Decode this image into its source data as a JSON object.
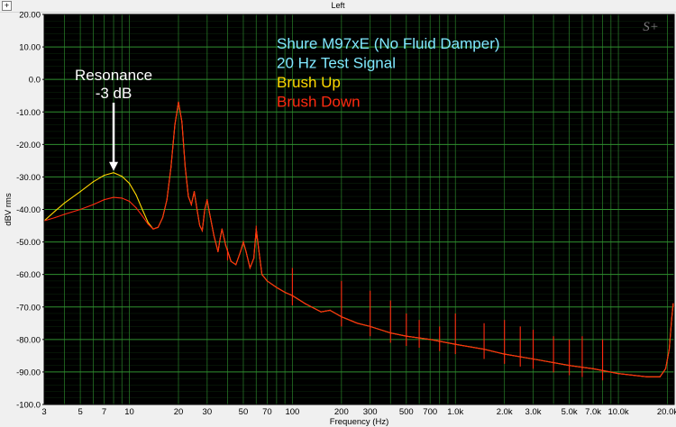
{
  "window": {
    "title": "Left",
    "expand_glyph": "+"
  },
  "chart_data": {
    "type": "line",
    "title": "",
    "xlabel": "Frequency (Hz)",
    "ylabel": "dBV rms",
    "x_scale": "log",
    "xlim": [
      3,
      22000
    ],
    "ylim": [
      -100,
      20
    ],
    "x_ticks": [
      3,
      5,
      7,
      10,
      20,
      30,
      50,
      70,
      100,
      200,
      300,
      500,
      700,
      1000,
      2000,
      3000,
      5000,
      7000,
      10000,
      20000
    ],
    "x_tick_labels": [
      "3",
      "5",
      "7",
      "10",
      "20",
      "30",
      "50",
      "70",
      "100",
      "200",
      "300",
      "500",
      "700",
      "1.0k",
      "2.0k",
      "3.0k",
      "5.0k",
      "7.0k",
      "10.0k",
      "20.0k"
    ],
    "y_ticks": [
      20,
      10,
      0,
      -10,
      -20,
      -30,
      -40,
      -50,
      -60,
      -70,
      -80,
      -90,
      -100
    ],
    "y_tick_labels": [
      "20.00",
      "10.00",
      "0.0",
      "-10.00",
      "-20.00",
      "-30.00",
      "-40.00",
      "-50.00",
      "-60.00",
      "-70.00",
      "-80.00",
      "-90.00",
      "-100.0"
    ],
    "grid": true,
    "background": "#000000",
    "grid_color": "#2f8f2f",
    "legend_text": [
      {
        "text": "Shure M97xE (No Fluid Damper)",
        "color": "#80e8ff"
      },
      {
        "text": "20 Hz Test Signal",
        "color": "#80e8ff"
      },
      {
        "text": "Brush Up",
        "color": "#ffd700"
      },
      {
        "text": "Brush Down",
        "color": "#ff2a10"
      }
    ],
    "legend_placement": "top-center",
    "annotation": {
      "lines": [
        "Resonance",
        "-3 dB"
      ],
      "x": 8,
      "y": -28.7,
      "color": "#ffffff"
    },
    "watermark": "S+",
    "series": [
      {
        "name": "Brush Up",
        "color": "#ffd700",
        "points": [
          [
            3,
            -43.5
          ],
          [
            3.5,
            -40.5
          ],
          [
            4,
            -38
          ],
          [
            5,
            -34.5
          ],
          [
            6,
            -31.5
          ],
          [
            7,
            -29.5
          ],
          [
            8,
            -28.7
          ],
          [
            9,
            -29.8
          ],
          [
            10,
            -32
          ],
          [
            11,
            -35.5
          ],
          [
            12,
            -40
          ],
          [
            13,
            -44
          ],
          [
            14,
            -46
          ],
          [
            15,
            -45.5
          ],
          [
            16,
            -42.5
          ],
          [
            17,
            -37
          ],
          [
            18,
            -27
          ],
          [
            19,
            -14
          ],
          [
            20,
            -7
          ],
          [
            21,
            -13
          ],
          [
            22,
            -27
          ],
          [
            23,
            -36
          ],
          [
            24,
            -38.5
          ],
          [
            25,
            -34.5
          ],
          [
            26,
            -40
          ],
          [
            27,
            -45
          ],
          [
            28,
            -46.5
          ],
          [
            29,
            -40
          ],
          [
            30,
            -37
          ],
          [
            31,
            -41
          ],
          [
            33,
            -48
          ],
          [
            35,
            -53
          ],
          [
            36,
            -49
          ],
          [
            37,
            -46
          ],
          [
            39,
            -51
          ],
          [
            42,
            -56
          ],
          [
            45,
            -57
          ],
          [
            48,
            -53
          ],
          [
            50,
            -50
          ],
          [
            52,
            -53
          ],
          [
            55,
            -58
          ],
          [
            58,
            -55
          ],
          [
            60,
            -46
          ],
          [
            62,
            -52
          ],
          [
            65,
            -60
          ],
          [
            70,
            -62
          ],
          [
            80,
            -64
          ],
          [
            90,
            -65.5
          ],
          [
            100,
            -66.5
          ],
          [
            120,
            -69
          ],
          [
            150,
            -71.5
          ],
          [
            170,
            -71
          ],
          [
            200,
            -73
          ],
          [
            250,
            -75
          ],
          [
            300,
            -76
          ],
          [
            400,
            -78
          ],
          [
            500,
            -79
          ],
          [
            700,
            -80
          ],
          [
            1000,
            -81.5
          ],
          [
            1500,
            -83
          ],
          [
            2000,
            -84.5
          ],
          [
            3000,
            -86
          ],
          [
            5000,
            -88
          ],
          [
            7000,
            -89
          ],
          [
            10000,
            -90.5
          ],
          [
            15000,
            -91.5
          ],
          [
            18000,
            -91.5
          ],
          [
            19500,
            -89
          ],
          [
            20500,
            -83
          ],
          [
            21200,
            -74
          ],
          [
            21700,
            -69
          ],
          [
            22000,
            -70
          ]
        ]
      },
      {
        "name": "Brush Down",
        "color": "#ff2a10",
        "points": [
          [
            3,
            -43.5
          ],
          [
            3.5,
            -42.5
          ],
          [
            4,
            -41.5
          ],
          [
            5,
            -40
          ],
          [
            6,
            -38.5
          ],
          [
            7,
            -37
          ],
          [
            8,
            -36.3
          ],
          [
            9,
            -36.5
          ],
          [
            10,
            -37.5
          ],
          [
            11,
            -39.5
          ],
          [
            12,
            -42
          ],
          [
            13,
            -44.5
          ],
          [
            14,
            -46
          ],
          [
            15,
            -45.5
          ],
          [
            16,
            -42.5
          ],
          [
            17,
            -37
          ],
          [
            18,
            -27
          ],
          [
            19,
            -14
          ],
          [
            20,
            -7
          ],
          [
            21,
            -13
          ],
          [
            22,
            -27
          ],
          [
            23,
            -36
          ],
          [
            24,
            -38.5
          ],
          [
            25,
            -34.5
          ],
          [
            26,
            -40
          ],
          [
            27,
            -45
          ],
          [
            28,
            -46.5
          ],
          [
            29,
            -40
          ],
          [
            30,
            -37
          ],
          [
            31,
            -41
          ],
          [
            33,
            -48
          ],
          [
            35,
            -53
          ],
          [
            36,
            -49
          ],
          [
            37,
            -46
          ],
          [
            39,
            -51
          ],
          [
            42,
            -56
          ],
          [
            45,
            -57
          ],
          [
            48,
            -53
          ],
          [
            50,
            -50
          ],
          [
            52,
            -53
          ],
          [
            55,
            -58
          ],
          [
            58,
            -55
          ],
          [
            60,
            -46
          ],
          [
            62,
            -52
          ],
          [
            65,
            -60
          ],
          [
            70,
            -62
          ],
          [
            80,
            -64
          ],
          [
            90,
            -65.5
          ],
          [
            100,
            -66.5
          ],
          [
            120,
            -69
          ],
          [
            150,
            -71.5
          ],
          [
            170,
            -71
          ],
          [
            200,
            -73
          ],
          [
            250,
            -75
          ],
          [
            300,
            -76
          ],
          [
            400,
            -78
          ],
          [
            500,
            -79
          ],
          [
            700,
            -80
          ],
          [
            1000,
            -81.5
          ],
          [
            1500,
            -83
          ],
          [
            2000,
            -84.5
          ],
          [
            3000,
            -86
          ],
          [
            5000,
            -88
          ],
          [
            7000,
            -89
          ],
          [
            10000,
            -90.5
          ],
          [
            15000,
            -91.5
          ],
          [
            18000,
            -91.5
          ],
          [
            19500,
            -89
          ],
          [
            20500,
            -83
          ],
          [
            21200,
            -74
          ],
          [
            21700,
            -69
          ],
          [
            22000,
            -70
          ]
        ]
      }
    ],
    "spikes": [
      {
        "x": 40,
        "y": -52
      },
      {
        "x": 60,
        "y": -45
      },
      {
        "x": 100,
        "y": -58
      },
      {
        "x": 200,
        "y": -62
      },
      {
        "x": 300,
        "y": -65
      },
      {
        "x": 400,
        "y": -68
      },
      {
        "x": 500,
        "y": -72
      },
      {
        "x": 600,
        "y": -74
      },
      {
        "x": 800,
        "y": -76
      },
      {
        "x": 1000,
        "y": -72
      },
      {
        "x": 1500,
        "y": -75
      },
      {
        "x": 2000,
        "y": -74
      },
      {
        "x": 2500,
        "y": -76
      },
      {
        "x": 3000,
        "y": -77
      },
      {
        "x": 4000,
        "y": -79
      },
      {
        "x": 5000,
        "y": -80
      },
      {
        "x": 6000,
        "y": -79
      },
      {
        "x": 8000,
        "y": -80
      }
    ]
  }
}
